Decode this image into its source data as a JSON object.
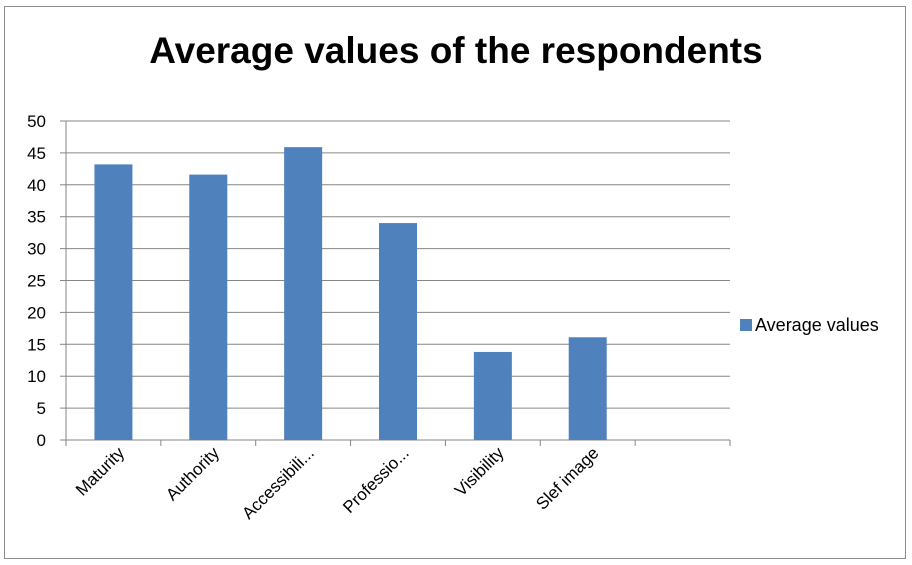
{
  "chart_data": {
    "type": "bar",
    "title": "Average values of the respondents",
    "categories": [
      "Maturity",
      "Authority",
      "Accessibili...",
      "Professio...",
      "Visibility",
      "Slef image",
      ""
    ],
    "series": [
      {
        "name": "Average values",
        "values": [
          43.2,
          41.6,
          45.9,
          34.0,
          13.8,
          16.1,
          null
        ]
      }
    ],
    "ylim": [
      0,
      50
    ],
    "yticks": [
      "0",
      "5",
      "10",
      "15",
      "20",
      "25",
      "30",
      "35",
      "40",
      "45",
      "50"
    ],
    "xlabel": "",
    "ylabel": "",
    "grid": true,
    "legend": "right",
    "colors": {
      "bar": "#4f81bd",
      "grid": "#868686",
      "axis": "#868686"
    }
  }
}
